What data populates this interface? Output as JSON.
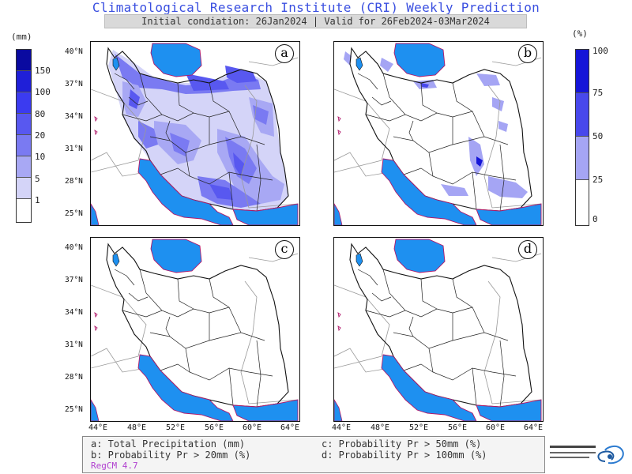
{
  "header": {
    "title": "Climatological Research Institute (CRI) Weekly Prediction",
    "subtitle": "Initial condiation: 26Jan2024 | Valid for 26Feb2024-03Mar2024"
  },
  "legend_left": {
    "unit": "(mm)",
    "levels": [
      "150",
      "100",
      "80",
      "20",
      "10",
      "5",
      "1"
    ],
    "colors": [
      "#0a0aa0",
      "#1f1fd8",
      "#3b3bf0",
      "#5858f0",
      "#7a7af2",
      "#a8a8f4",
      "#d4d4f8",
      "#ffffff"
    ]
  },
  "legend_right": {
    "unit": "(%)",
    "levels": [
      "100",
      "75",
      "50",
      "25",
      "0"
    ],
    "colors": [
      "#1515d8",
      "#4848ec",
      "#a5a5f4",
      "#ffffff"
    ]
  },
  "panels": [
    {
      "letter": "a"
    },
    {
      "letter": "b"
    },
    {
      "letter": "c"
    },
    {
      "letter": "d"
    }
  ],
  "axes": {
    "lat_labels": [
      "40°N",
      "37°N",
      "34°N",
      "31°N",
      "28°N",
      "25°N"
    ],
    "lon_labels": [
      "44°E",
      "48°E",
      "52°E",
      "56°E",
      "60°E",
      "64°E"
    ]
  },
  "caption": {
    "a": "a: Total Precipitation (mm)",
    "b": "b: Probability Pr > 20mm (%)",
    "c": "c: Probability Pr > 50mm (%)",
    "d": "d: Probability Pr > 100mm (%)",
    "model": "RegCM 4.7"
  },
  "colors": {
    "water": "#1e90f0",
    "title": "#3a4fe0",
    "coast": "#b0186a"
  }
}
